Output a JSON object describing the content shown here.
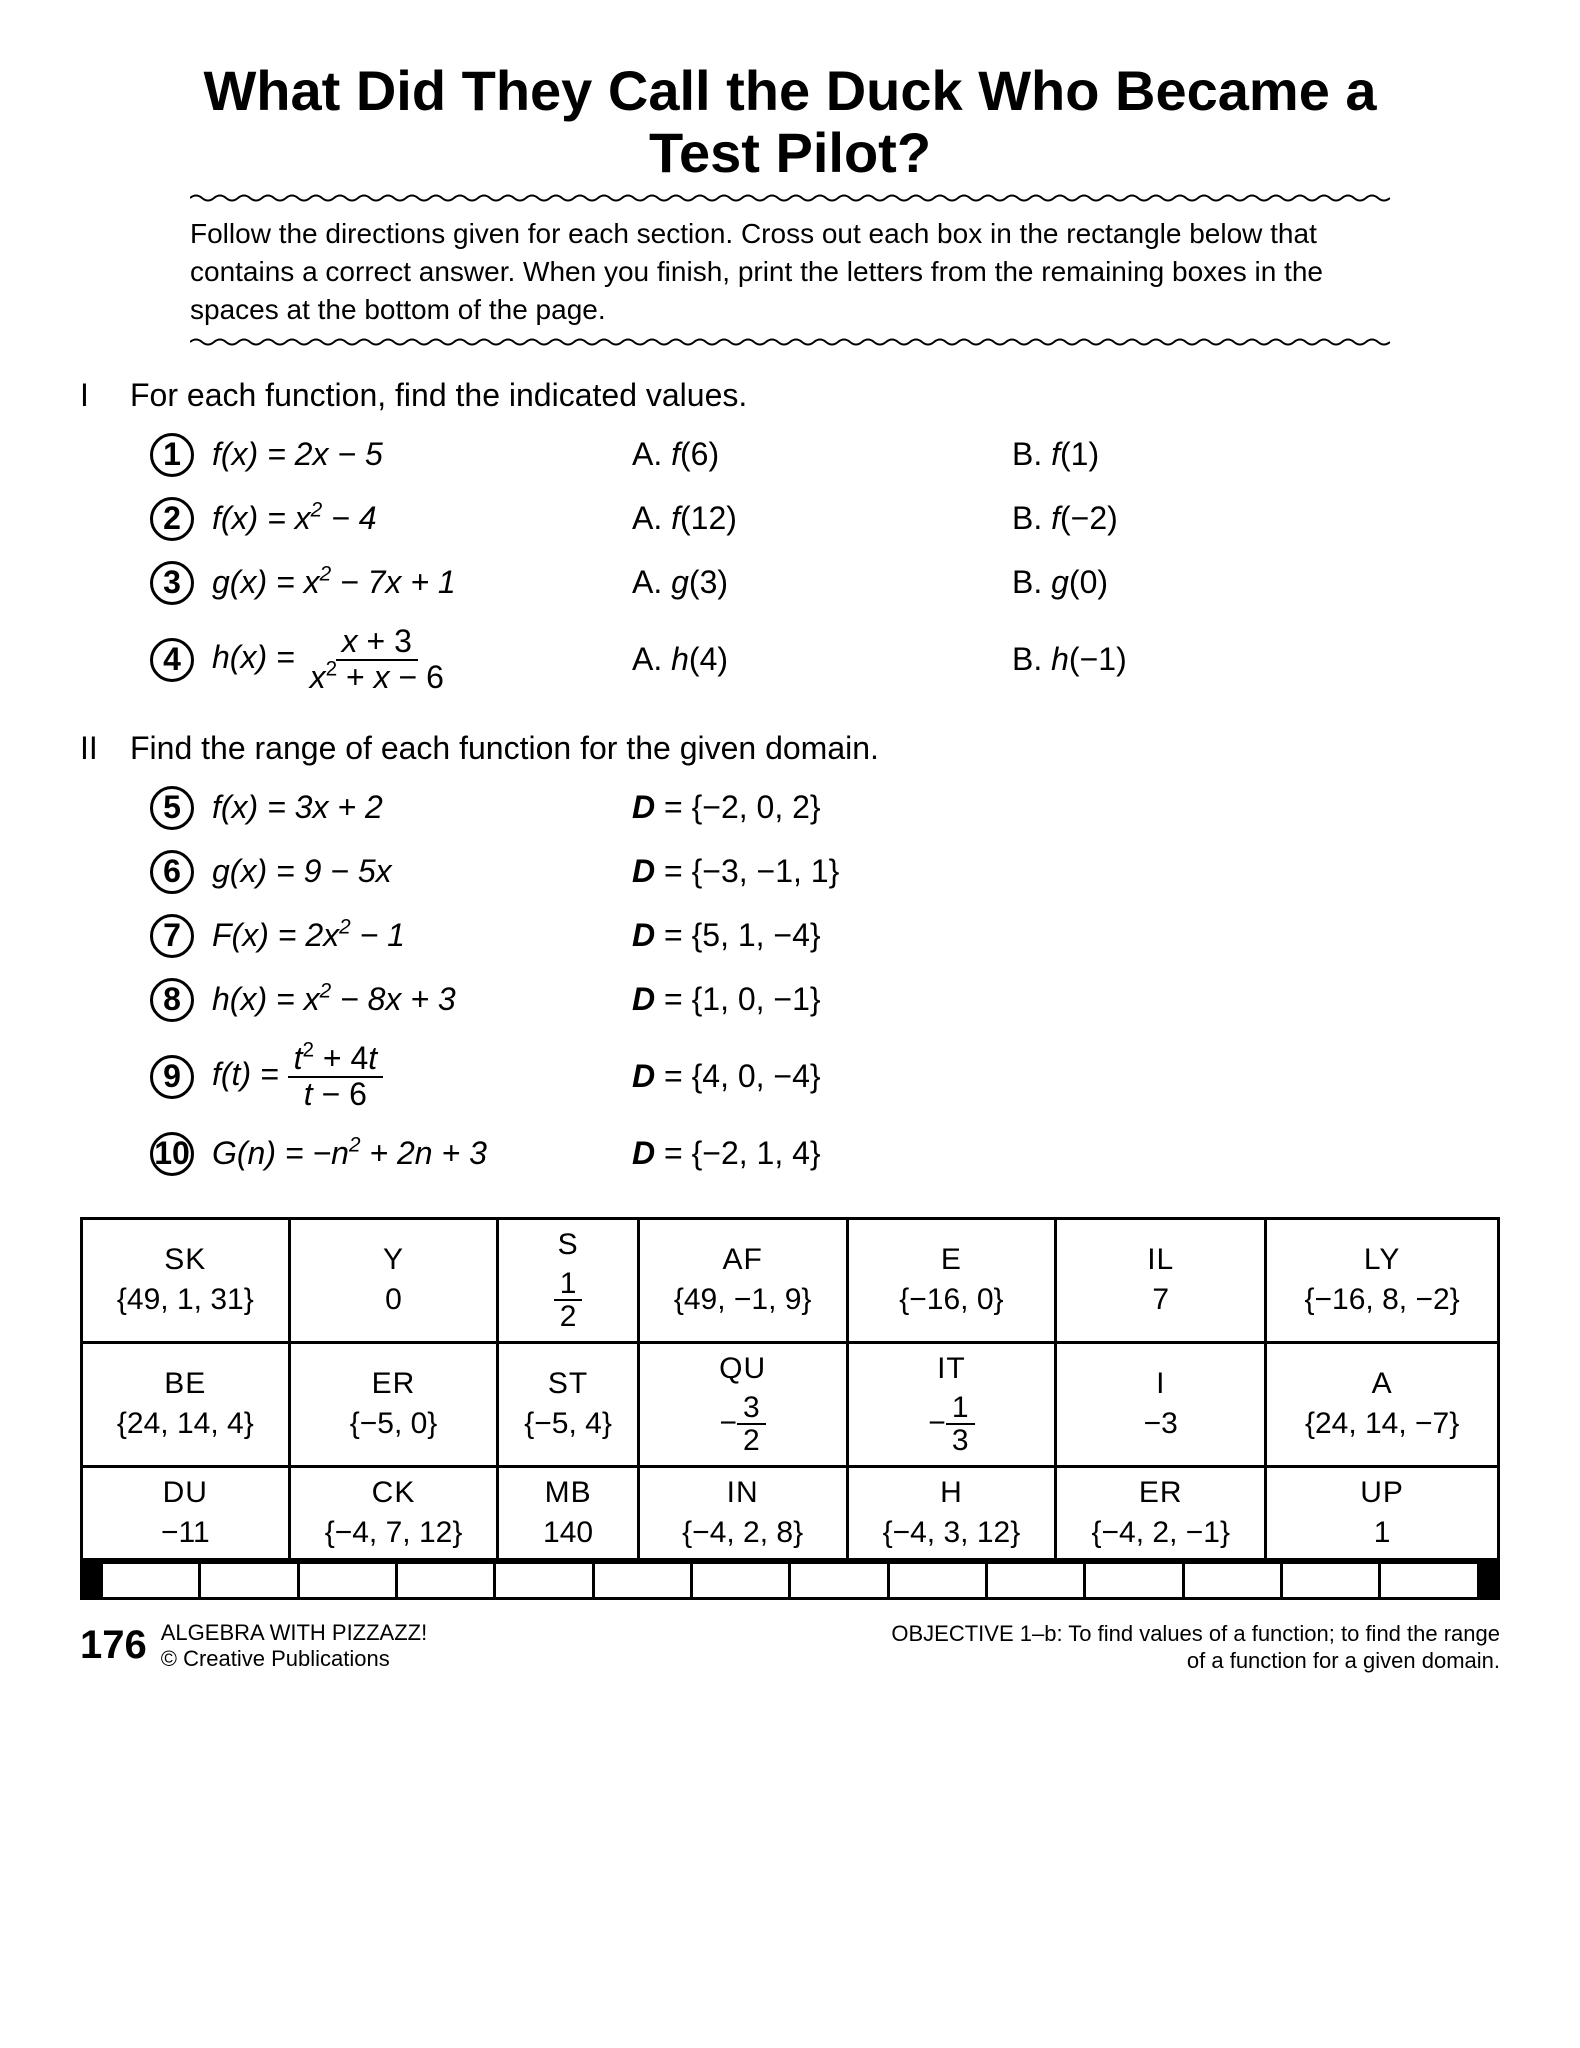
{
  "title": "What Did They Call the Duck Who Became a Test Pilot?",
  "instructions": "Follow the directions given for each section. Cross out each box in the rectangle below that contains a correct answer. When you finish, print the letters from the remaining boxes in the spaces at the bottom of the page.",
  "section1": {
    "roman": "I",
    "heading": "For each function, find the indicated values.",
    "rows": [
      {
        "n": "1",
        "func_html": "<span class='ital'>f</span>(<span class='ital'>x</span>) = 2<span class='ital'>x</span> − 5",
        "A": "A. <span class='ital'>f</span>(6)",
        "B": "B. <span class='ital'>f</span>(1)"
      },
      {
        "n": "2",
        "func_html": "<span class='ital'>f</span>(<span class='ital'>x</span>) = <span class='ital'>x</span><sup>2</sup> − 4",
        "A": "A. <span class='ital'>f</span>(12)",
        "B": "B. <span class='ital'>f</span>(−2)"
      },
      {
        "n": "3",
        "func_html": "<span class='ital'>g</span>(<span class='ital'>x</span>) = <span class='ital'>x</span><sup>2</sup> − 7<span class='ital'>x</span> + 1",
        "A": "A. <span class='ital'>g</span>(3)",
        "B": "B. <span class='ital'>g</span>(0)"
      },
      {
        "n": "4",
        "tall": true,
        "func_html": "<span class='ital'>h</span>(<span class='ital'>x</span>) = <span class='frac'><span class='fnum'><span class='ital'>x</span> + 3</span><span class='fden'><span class='ital'>x</span><sup>2</sup> + <span class='ital'>x</span> − 6</span></span>",
        "A": "A. <span class='ital'>h</span>(4)",
        "B": "B. <span class='ital'>h</span>(−1)"
      }
    ]
  },
  "section2": {
    "roman": "II",
    "heading": "Find the range of each function for the given domain.",
    "rows": [
      {
        "n": "5",
        "func_html": "<span class='ital'>f</span>(<span class='ital'>x</span>) = 3<span class='ital'>x</span> + 2",
        "D": "{−2, 0, 2}"
      },
      {
        "n": "6",
        "func_html": "<span class='ital'>g</span>(<span class='ital'>x</span>) = 9 − 5<span class='ital'>x</span>",
        "D": "{−3, −1, 1}"
      },
      {
        "n": "7",
        "func_html": "<span class='ital'>F</span>(<span class='ital'>x</span>) = 2<span class='ital'>x</span><sup>2</sup> − 1",
        "D": "{5, 1, −4}"
      },
      {
        "n": "8",
        "func_html": "<span class='ital'>h</span>(<span class='ital'>x</span>) = <span class='ital'>x</span><sup>2</sup> − 8<span class='ital'>x</span> + 3",
        "D": "{1, 0, −1}"
      },
      {
        "n": "9",
        "tall": true,
        "func_html": "<span class='ital'>f</span>(<span class='ital'>t</span>) = <span class='frac'><span class='fnum'><span class='ital'>t</span><sup>2</sup> + 4<span class='ital'>t</span></span><span class='fden'><span class='ital'>t</span> − 6</span></span>",
        "D": "{4, 0, −4}"
      },
      {
        "n": "10",
        "func_html": "<span class='ital'>G</span>(<span class='ital'>n</span>) = −<span class='ital'>n</span><sup>2</sup> + 2<span class='ital'>n</span> + 3",
        "D": "{−2, 1, 4}"
      }
    ]
  },
  "grid": {
    "rows": [
      [
        {
          "lbl": "SK",
          "val": "{49, 1, 31}"
        },
        {
          "lbl": "Y",
          "val": "0"
        },
        {
          "lbl": "S",
          "val_html": "<span class='frac'><span class='fnum'>1</span><span class='fden'>2</span></span>"
        },
        {
          "lbl": "AF",
          "val": "{49, −1, 9}"
        },
        {
          "lbl": "E",
          "val": "{−16, 0}"
        },
        {
          "lbl": "IL",
          "val": "7"
        },
        {
          "lbl": "LY",
          "val": "{−16, 8, −2}"
        }
      ],
      [
        {
          "lbl": "BE",
          "val": "{24, 14, 4}"
        },
        {
          "lbl": "ER",
          "val": "{−5, 0}"
        },
        {
          "lbl": "ST",
          "val": "{−5, 4}"
        },
        {
          "lbl": "QU",
          "val_html": "−<span class='frac'><span class='fnum'>3</span><span class='fden'>2</span></span>"
        },
        {
          "lbl": "IT",
          "val_html": "−<span class='frac'><span class='fnum'>1</span><span class='fden'>3</span></span>"
        },
        {
          "lbl": "I",
          "val": "−3"
        },
        {
          "lbl": "A",
          "val": "{24, 14, −7}"
        }
      ],
      [
        {
          "lbl": "DU",
          "val": "−11"
        },
        {
          "lbl": "CK",
          "val": "{−4, 7, 12}"
        },
        {
          "lbl": "MB",
          "val": "140"
        },
        {
          "lbl": "IN",
          "val": "{−4, 2, 8}"
        },
        {
          "lbl": "H",
          "val": "{−4, 3, 12}"
        },
        {
          "lbl": "ER",
          "val": "{−4, 2, −1}"
        },
        {
          "lbl": "UP",
          "val": "1"
        }
      ]
    ],
    "blank_cells": 14
  },
  "footer": {
    "page": "176",
    "book": "ALGEBRA WITH PIZZAZZ!",
    "copyright": "© Creative Publications",
    "objective": "OBJECTIVE 1–b: To find values of a function; to find the range of a function for a given domain."
  }
}
